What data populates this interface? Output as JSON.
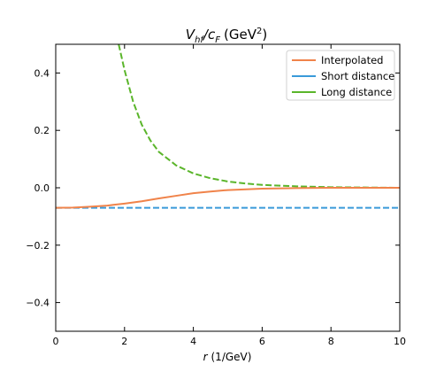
{
  "chart_data": {
    "type": "line",
    "title": {
      "main": "V",
      "sub1": "hf",
      "slash": "/c",
      "sub2": "F",
      "unit": "(GeV",
      "exp": "2",
      "close": ")"
    },
    "xlabel": {
      "var": "r",
      "unit": "(1/GeV)"
    },
    "ylabel": "",
    "xlim": [
      0,
      10
    ],
    "ylim": [
      -0.5,
      0.5
    ],
    "xticks": [
      0,
      2,
      4,
      6,
      8,
      10
    ],
    "xtick_labels": [
      "0",
      "2",
      "4",
      "6",
      "8",
      "10"
    ],
    "yticks": [
      -0.4,
      -0.2,
      0.0,
      0.2,
      0.4
    ],
    "ytick_labels": [
      "−0.4",
      "−0.2",
      "0.0",
      "0.2",
      "0.4"
    ],
    "grid": false,
    "legend_position": "top-right",
    "series": [
      {
        "name": "Interpolated",
        "color": "#f0834a",
        "style": "solid",
        "x": [
          0,
          0.5,
          1,
          1.5,
          2,
          2.5,
          3,
          3.5,
          4,
          4.5,
          5,
          6,
          7,
          8,
          9,
          10
        ],
        "y": [
          -0.07,
          -0.069,
          -0.066,
          -0.062,
          -0.055,
          -0.047,
          -0.037,
          -0.028,
          -0.019,
          -0.013,
          -0.008,
          -0.003,
          -0.001,
          0.0,
          0.0,
          0.0
        ]
      },
      {
        "name": "Short distance",
        "color": "#3a9ad9",
        "style": "dashed",
        "x": [
          0,
          10
        ],
        "y": [
          -0.07,
          -0.07
        ]
      },
      {
        "name": "Long distance",
        "color": "#5ab52a",
        "style": "dashed",
        "x": [
          1.83,
          2,
          2.25,
          2.5,
          2.75,
          3,
          3.5,
          4,
          4.5,
          5,
          5.5,
          6,
          7,
          8,
          9,
          10
        ],
        "y": [
          0.5,
          0.41,
          0.3,
          0.22,
          0.165,
          0.125,
          0.078,
          0.05,
          0.033,
          0.022,
          0.015,
          0.01,
          0.005,
          0.002,
          0.001,
          0.0
        ]
      }
    ]
  }
}
